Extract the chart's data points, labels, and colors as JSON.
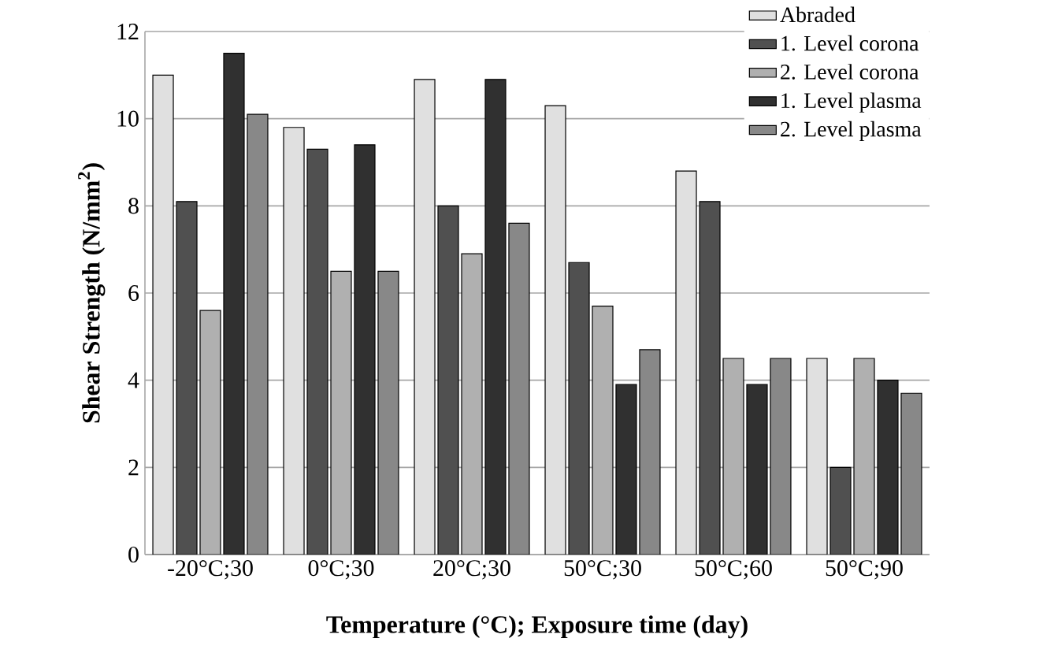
{
  "chart_data": {
    "type": "bar",
    "xlabel": "Temperature (°C); Exposure time (day)",
    "ylabel": "Shear  Strength (N/mm$^{2}$)",
    "categories": [
      "-20°C;30",
      "0°C;30",
      "20°C;30",
      "50°C;30",
      "50°C;60",
      "50°C;90"
    ],
    "series": [
      {
        "name": "Abraded",
        "color": "#e0e0e0",
        "values": [
          11.0,
          9.8,
          10.9,
          10.3,
          8.8,
          4.5
        ]
      },
      {
        "name": "1. Level corona",
        "color": "#505050",
        "values": [
          8.1,
          9.3,
          8.0,
          6.7,
          8.1,
          2.0
        ]
      },
      {
        "name": "2. Level corona",
        "color": "#b0b0b0",
        "values": [
          5.6,
          6.5,
          6.9,
          5.7,
          4.5,
          4.5
        ]
      },
      {
        "name": "1. Level plasma",
        "color": "#303030",
        "values": [
          11.5,
          9.4,
          10.9,
          3.9,
          3.9,
          4.0
        ]
      },
      {
        "name": "2. Level plasma",
        "color": "#888888",
        "values": [
          10.1,
          6.5,
          7.6,
          4.7,
          4.5,
          3.7
        ]
      }
    ],
    "ylim": [
      0,
      12
    ],
    "yticks": [
      0,
      2,
      4,
      6,
      8,
      10,
      12
    ],
    "grid": "y",
    "legend": "top right"
  }
}
